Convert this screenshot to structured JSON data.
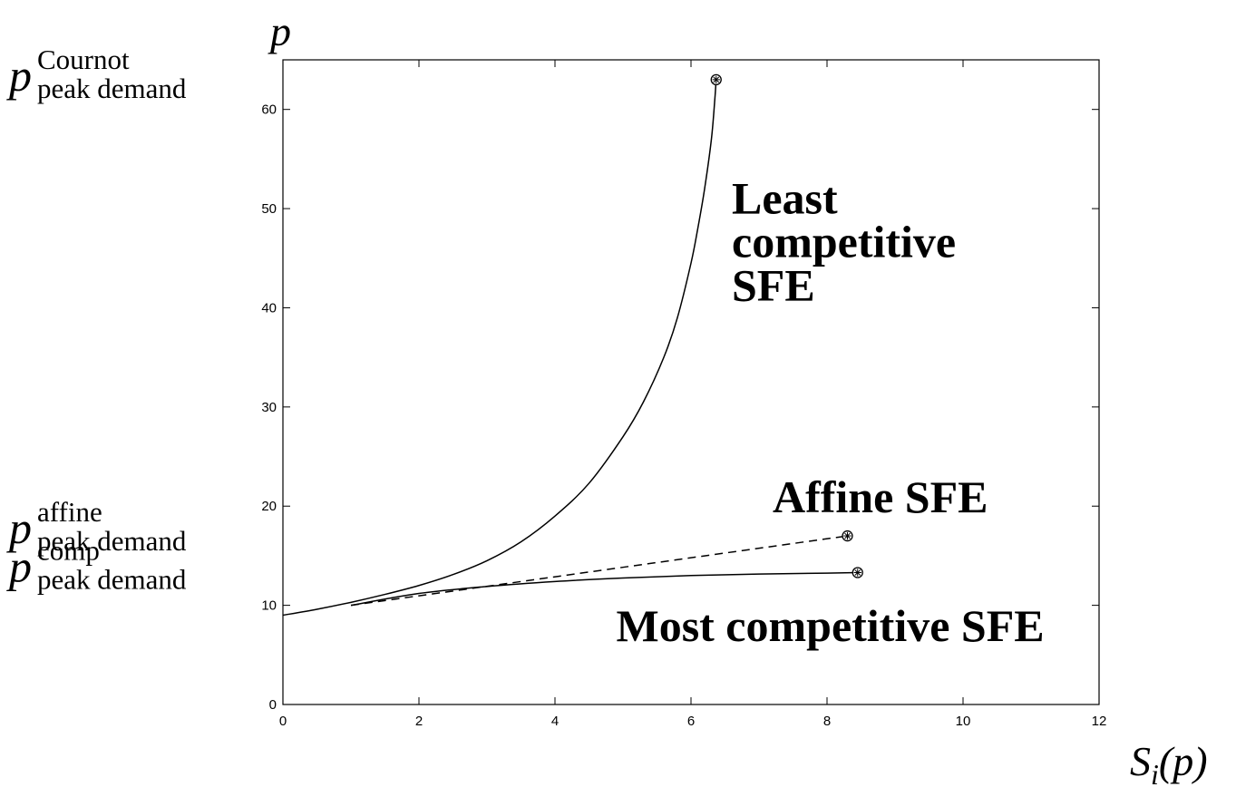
{
  "chart_data": {
    "type": "line",
    "xlim": [
      0,
      12
    ],
    "ylim": [
      0,
      65
    ],
    "x_ticks": [
      "0",
      "2",
      "4",
      "6",
      "8",
      "10",
      "12"
    ],
    "y_ticks": [
      "0",
      "10",
      "20",
      "30",
      "40",
      "50",
      "60"
    ],
    "x_tick_values": [
      0,
      2,
      4,
      6,
      8,
      10,
      12
    ],
    "y_tick_values": [
      0,
      10,
      20,
      30,
      40,
      50,
      60
    ],
    "grid": false,
    "xlabel": {
      "base": "S",
      "sub": "i",
      "rest": "(p)"
    },
    "ylabel": "p",
    "price_labels": [
      {
        "base": "p",
        "sup": "Cournot",
        "sub": "peak demand",
        "y": 63
      },
      {
        "base": "p",
        "sup": "affine",
        "sub": "peak demand",
        "y": 17
      },
      {
        "base": "p",
        "sup": "comp",
        "sub": "peak demand",
        "y": 13.3
      }
    ],
    "annotations": [
      {
        "lines": [
          "Least",
          "competitive",
          "SFE"
        ],
        "x": 6.6,
        "y": 49.5
      },
      {
        "lines": [
          "Affine SFE"
        ],
        "x": 7.2,
        "y": 19.4
      },
      {
        "lines": [
          "Most competitive SFE"
        ],
        "x": 4.9,
        "y": 6.4
      }
    ],
    "series": [
      {
        "style": "solid",
        "endpoint_marker": true,
        "x": [
          0,
          0.5,
          1.0,
          1.5,
          2.0,
          2.5,
          3.0,
          3.5,
          4.0,
          4.5,
          5.0,
          5.3,
          5.6,
          5.8,
          6.0,
          6.1,
          6.2,
          6.3,
          6.35,
          6.37
        ],
        "y": [
          9.0,
          9.6,
          10.3,
          11.1,
          12.0,
          13.1,
          14.5,
          16.4,
          19.0,
          22.3,
          27.0,
          30.5,
          35.0,
          39.0,
          44.5,
          48.0,
          52.0,
          57.0,
          61.0,
          63.0
        ]
      },
      {
        "style": "dashed",
        "endpoint_marker": true,
        "x": [
          1.0,
          8.3
        ],
        "y": [
          10.0,
          17.0
        ]
      },
      {
        "style": "solid",
        "endpoint_marker": true,
        "x": [
          1.0,
          2.0,
          3.0,
          4.0,
          5.0,
          6.0,
          7.0,
          8.0,
          8.45
        ],
        "y": [
          10.0,
          11.2,
          11.9,
          12.4,
          12.75,
          13.0,
          13.15,
          13.25,
          13.3
        ]
      }
    ]
  }
}
